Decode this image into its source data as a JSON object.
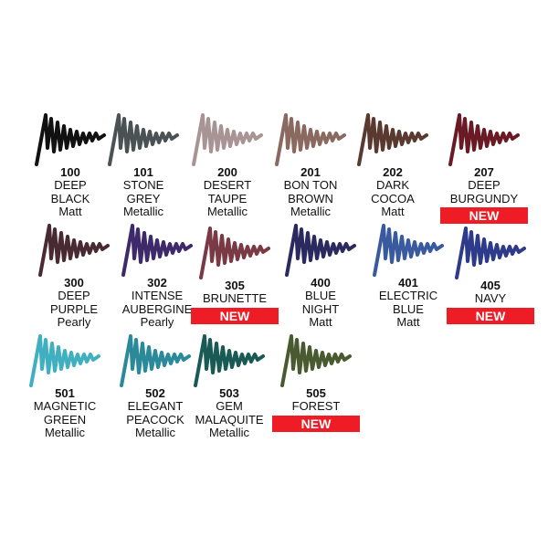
{
  "items": [
    {
      "code": "100",
      "name": [
        "DEEP",
        "BLACK"
      ],
      "finish": "Matt",
      "new": false,
      "color": "#111111"
    },
    {
      "code": "101",
      "name": [
        "STONE",
        "GREY"
      ],
      "finish": "Metallic",
      "new": false,
      "color": "#4a5254"
    },
    {
      "code": "200",
      "name": [
        "DESERT",
        "TAUPE"
      ],
      "finish": "Metallic",
      "new": false,
      "color": "#a89494"
    },
    {
      "code": "201",
      "name": [
        "BON TON",
        "BROWN"
      ],
      "finish": "Metallic",
      "new": false,
      "color": "#8a6a60"
    },
    {
      "code": "202",
      "name": [
        "DARK",
        "COCOA"
      ],
      "finish": "Matt",
      "new": false,
      "color": "#5a3a30"
    },
    {
      "code": "207",
      "name": [
        "DEEP",
        "BURGUNDY"
      ],
      "finish": "",
      "new": true,
      "color": "#6a1a25"
    },
    {
      "code": "300",
      "name": [
        "DEEP",
        "PURPLE"
      ],
      "finish": "Pearly",
      "new": false,
      "color": "#4a2a32"
    },
    {
      "code": "302",
      "name": [
        "INTENSE",
        "AUBERGINE"
      ],
      "finish": "Pearly",
      "new": false,
      "color": "#3e2a6a"
    },
    {
      "code": "305",
      "name": [
        "BRUNETTE"
      ],
      "finish": "",
      "new": true,
      "color": "#7a3a45"
    },
    {
      "code": "400",
      "name": [
        "BLUE",
        "NIGHT"
      ],
      "finish": "Matt",
      "new": false,
      "color": "#2a2a60"
    },
    {
      "code": "401",
      "name": [
        "ELECTRIC",
        "BLUE"
      ],
      "finish": "Matt",
      "new": false,
      "color": "#3a5aa0"
    },
    {
      "code": "405",
      "name": [
        "NAVY"
      ],
      "finish": "",
      "new": true,
      "color": "#2e3a8a"
    },
    {
      "code": "501",
      "name": [
        "MAGNETIC",
        "GREEN"
      ],
      "finish": "Metallic",
      "new": false,
      "color": "#40b0c0"
    },
    {
      "code": "502",
      "name": [
        "ELEGANT",
        "PEACOCK"
      ],
      "finish": "Metallic",
      "new": false,
      "color": "#2a8a9a"
    },
    {
      "code": "503",
      "name": [
        "GEM",
        "MALAQUITE"
      ],
      "finish": "Metallic",
      "new": false,
      "color": "#1a5a55"
    },
    {
      "code": "505",
      "name": [
        "FOREST"
      ],
      "finish": "",
      "new": true,
      "color": "#4a5a30"
    }
  ],
  "new_label": "NEW"
}
